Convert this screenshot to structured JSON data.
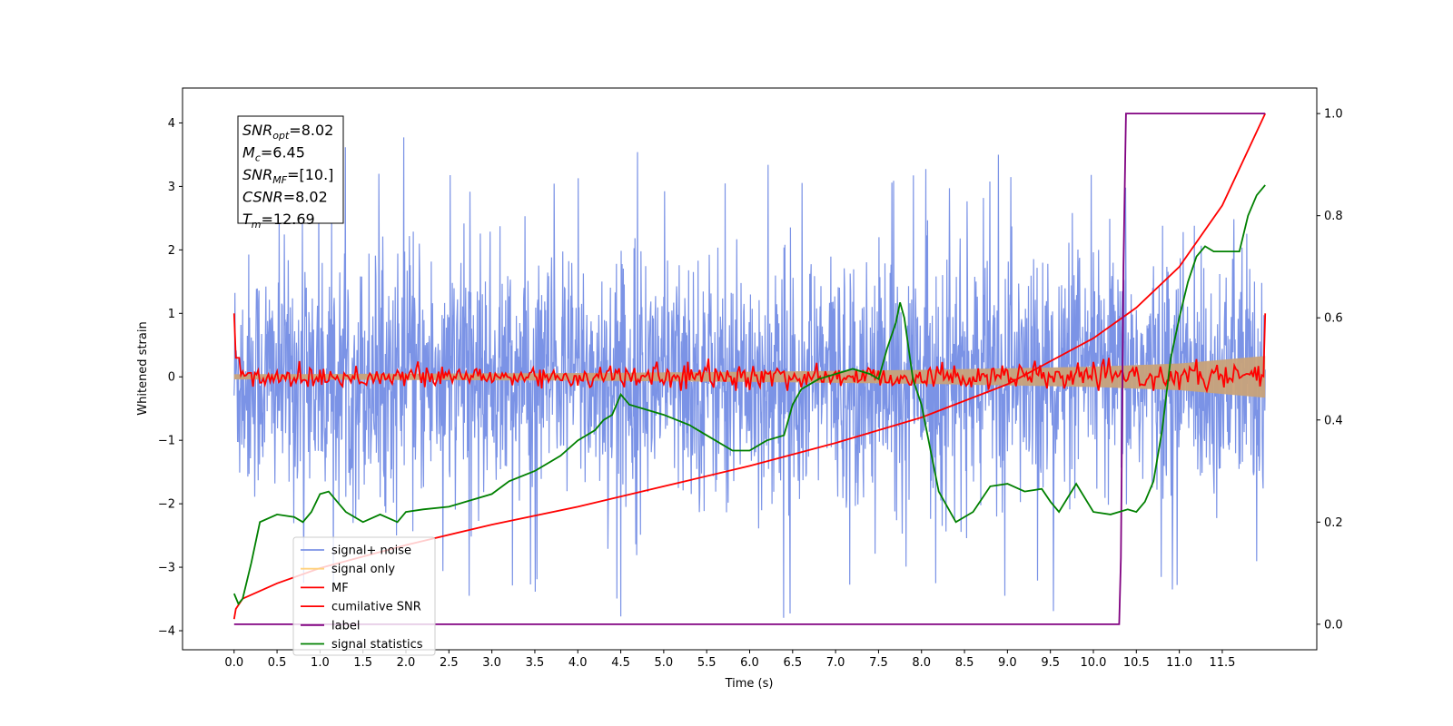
{
  "chart_data": {
    "type": "line",
    "xlabel": "Time (s)",
    "ylabel": "Whitened strain",
    "xlim": [
      -0.6,
      12.6
    ],
    "ylim": [
      -4.3,
      4.55
    ],
    "y2lim": [
      -0.05,
      1.05
    ],
    "x_ticks": [
      "0.0",
      "0.5",
      "1.0",
      "1.5",
      "2.0",
      "2.5",
      "3.0",
      "3.5",
      "4.0",
      "4.5",
      "5.0",
      "5.5",
      "6.0",
      "6.5",
      "7.0",
      "7.5",
      "8.0",
      "8.5",
      "9.0",
      "9.5",
      "10.0",
      "10.5",
      "11.0",
      "11.5"
    ],
    "y_ticks": [
      "4",
      "3",
      "2",
      "1",
      "0",
      "−1",
      "−2",
      "−3",
      "−4"
    ],
    "y2_ticks": [
      "1.0",
      "0.8",
      "0.6",
      "0.4",
      "0.2",
      "0.0"
    ],
    "annotation": {
      "lines": [
        {
          "sym": "SNR",
          "sub": "opt",
          "val": "=8.02"
        },
        {
          "sym": "M",
          "sub": "c",
          "val": "=6.45"
        },
        {
          "sym": "SNR",
          "sub": "MF",
          "val": "=[10.]"
        },
        {
          "sym": "CSNR",
          "sub": "",
          "val": "=8.02"
        },
        {
          "sym": "T",
          "sub": "m",
          "val": "=12.69"
        }
      ]
    },
    "legend": {
      "placement": "lower-left",
      "entries": [
        {
          "label": "signal+ noise",
          "color": "#7b93e6"
        },
        {
          "label": "signal only",
          "color": "#ffd27f"
        },
        {
          "label": "MF",
          "color": "#ff0000"
        },
        {
          "label": "cumilative SNR",
          "color": "#ff0000"
        },
        {
          "label": "label",
          "color": "#800080"
        },
        {
          "label": "signal statistics",
          "color": "#008000"
        }
      ]
    },
    "series": [
      {
        "name": "signal+ noise",
        "axis": "left",
        "kind": "noise",
        "color": "#7b93e6",
        "x_range": [
          0,
          12.0
        ],
        "std": 1.0,
        "amplitude_range": [
          -3.85,
          4.15
        ]
      },
      {
        "name": "signal only",
        "axis": "left",
        "kind": "envelope",
        "color": "#c8a27a",
        "envelope": {
          "x": [
            0,
            2,
            4,
            6,
            8,
            10,
            11,
            12
          ],
          "half_width": [
            0.04,
            0.05,
            0.06,
            0.08,
            0.11,
            0.16,
            0.21,
            0.33
          ]
        }
      },
      {
        "name": "MF",
        "axis": "left",
        "kind": "mf",
        "color": "#ff0000",
        "start_value": 1.0,
        "end_value": 1.0,
        "jitter": 0.12
      },
      {
        "name": "cumilative SNR",
        "axis": "right",
        "color": "#ff0000",
        "x": [
          0,
          0.02,
          0.1,
          0.5,
          1,
          2,
          3,
          4,
          5,
          6,
          7,
          8,
          9,
          10,
          10.5,
          11,
          11.5,
          12
        ],
        "y": [
          0.01,
          0.03,
          0.05,
          0.08,
          0.11,
          0.155,
          0.195,
          0.23,
          0.27,
          0.31,
          0.355,
          0.405,
          0.47,
          0.56,
          0.62,
          0.7,
          0.82,
          1.0
        ]
      },
      {
        "name": "label",
        "axis": "right",
        "color": "#800080",
        "x": [
          0,
          10.3,
          10.32,
          10.35,
          10.38,
          12.0
        ],
        "y": [
          0,
          0,
          0.13,
          0.7,
          1.0,
          1.0
        ]
      },
      {
        "name": "signal statistics",
        "axis": "right",
        "color": "#008000",
        "x": [
          0,
          0.05,
          0.1,
          0.2,
          0.3,
          0.5,
          0.7,
          0.8,
          0.9,
          1.0,
          1.1,
          1.2,
          1.3,
          1.5,
          1.7,
          1.9,
          2.0,
          2.2,
          2.5,
          2.7,
          3.0,
          3.2,
          3.5,
          3.8,
          4.0,
          4.2,
          4.3,
          4.4,
          4.5,
          4.6,
          4.8,
          5.0,
          5.3,
          5.5,
          5.8,
          6.0,
          6.2,
          6.4,
          6.5,
          6.6,
          6.8,
          7.0,
          7.2,
          7.4,
          7.5,
          7.6,
          7.7,
          7.75,
          7.8,
          7.9,
          8.0,
          8.2,
          8.4,
          8.6,
          8.8,
          9.0,
          9.2,
          9.4,
          9.5,
          9.6,
          9.8,
          10.0,
          10.2,
          10.4,
          10.5,
          10.6,
          10.7,
          10.8,
          10.9,
          11.0,
          11.1,
          11.2,
          11.3,
          11.4,
          11.5,
          11.6,
          11.7,
          11.8,
          11.9,
          12.0
        ],
        "y": [
          0.06,
          0.04,
          0.05,
          0.12,
          0.2,
          0.215,
          0.21,
          0.2,
          0.22,
          0.255,
          0.26,
          0.24,
          0.22,
          0.2,
          0.215,
          0.2,
          0.22,
          0.225,
          0.23,
          0.24,
          0.255,
          0.28,
          0.3,
          0.33,
          0.36,
          0.38,
          0.4,
          0.41,
          0.45,
          0.43,
          0.42,
          0.41,
          0.39,
          0.37,
          0.34,
          0.34,
          0.36,
          0.37,
          0.43,
          0.46,
          0.48,
          0.49,
          0.5,
          0.49,
          0.48,
          0.54,
          0.59,
          0.63,
          0.6,
          0.48,
          0.43,
          0.26,
          0.2,
          0.22,
          0.27,
          0.275,
          0.26,
          0.265,
          0.24,
          0.22,
          0.275,
          0.22,
          0.215,
          0.225,
          0.22,
          0.24,
          0.28,
          0.38,
          0.52,
          0.6,
          0.67,
          0.72,
          0.74,
          0.73,
          0.73,
          0.73,
          0.73,
          0.8,
          0.84,
          0.86
        ]
      }
    ]
  }
}
